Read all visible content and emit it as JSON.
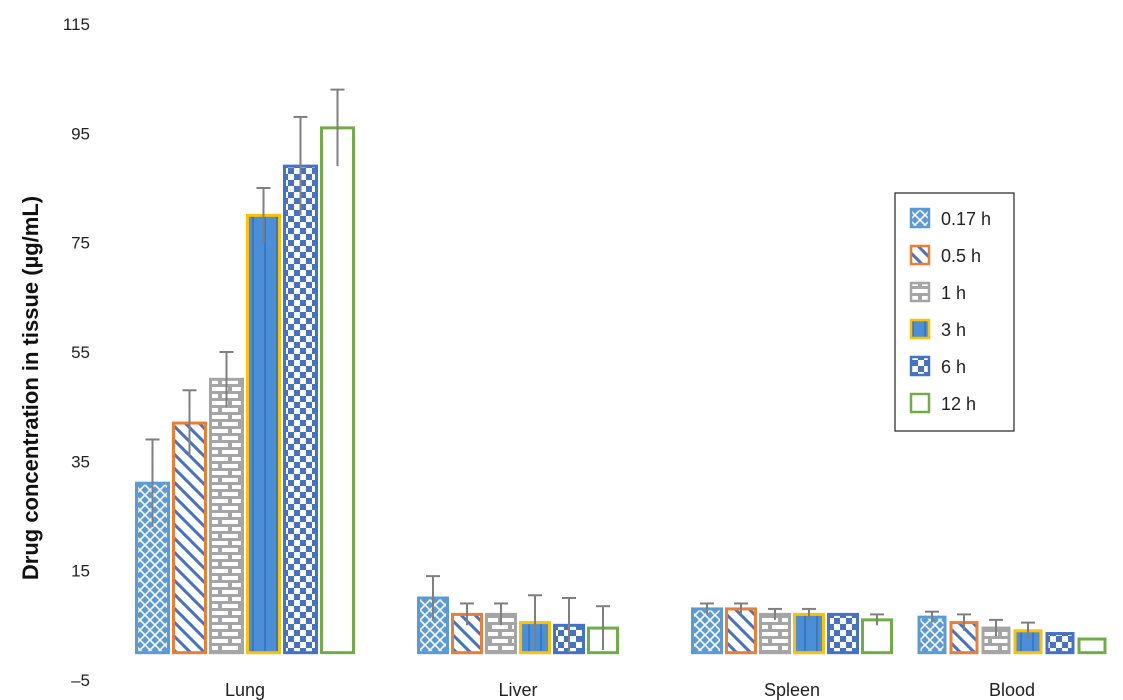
{
  "chart_data": {
    "type": "bar",
    "title": "",
    "xlabel": "",
    "ylabel": "Drug concentration in tissue (µg/mL)",
    "ylim": [
      -5,
      115
    ],
    "yticks": [
      -5,
      15,
      35,
      55,
      75,
      95,
      115
    ],
    "ytick_labels": [
      "–5",
      "15",
      "35",
      "55",
      "75",
      "95",
      "115"
    ],
    "categories": [
      "Lung",
      "Liver",
      "Spleen",
      "Blood"
    ],
    "grid": false,
    "legend_position": "right",
    "series": [
      {
        "name": "0.17 h",
        "color": "#5b9bd5",
        "pattern": "diamond-lattice",
        "values": [
          31,
          10,
          8,
          6.5
        ],
        "errors": [
          8,
          4,
          1,
          1
        ]
      },
      {
        "name": "0.5 h",
        "color": "#ed7d31",
        "pattern": "diagonal-stripes",
        "values": [
          42,
          7,
          8,
          5.5
        ],
        "errors": [
          6,
          2,
          1,
          1.5
        ]
      },
      {
        "name": "1 h",
        "color": "#a5a5a5",
        "pattern": "bricks",
        "values": [
          50,
          7,
          7,
          4.5
        ],
        "errors": [
          5,
          2,
          1,
          1.5
        ]
      },
      {
        "name": "3 h",
        "color": "#ffc000",
        "pattern": "dot-center",
        "values": [
          80,
          5.5,
          7,
          4
        ],
        "errors": [
          5,
          5,
          1,
          1.5
        ]
      },
      {
        "name": "6 h",
        "color": "#4472c4",
        "pattern": "checkerboard",
        "values": [
          89,
          5,
          7,
          3.5
        ],
        "errors": [
          9,
          5,
          0,
          0
        ]
      },
      {
        "name": "12 h",
        "color": "#70ad47",
        "pattern": "outline",
        "values": [
          96,
          4.5,
          6,
          2.5
        ],
        "errors": [
          7,
          4,
          1,
          0
        ]
      }
    ]
  }
}
